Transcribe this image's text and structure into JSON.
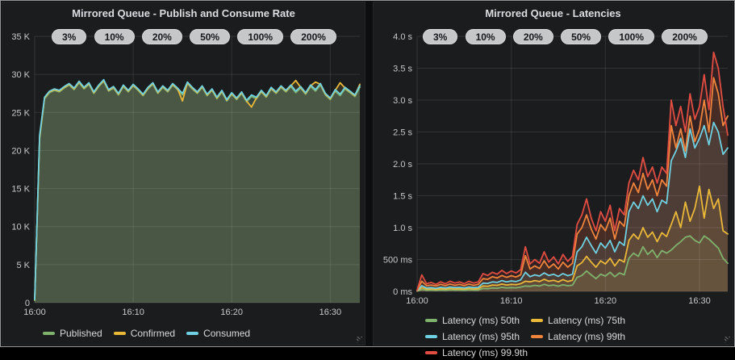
{
  "chart_data": [
    {
      "type": "area",
      "title": "Mirrored Queue - Publish and Consume Rate",
      "annotations": [
        "3%",
        "10%",
        "20%",
        "50%",
        "100%",
        "200%"
      ],
      "x_range": [
        "16:00",
        "16:33"
      ],
      "xmax_minutes": 33,
      "x_step_seconds": 30,
      "xticks": [
        "16:00",
        "16:10",
        "16:20",
        "16:30"
      ],
      "xtick_minutes": [
        0,
        10,
        20,
        30
      ],
      "ylim": [
        0,
        35000
      ],
      "yticks": [
        "0",
        "5 K",
        "10 K",
        "15 K",
        "20 K",
        "25 K",
        "30 K",
        "35 K"
      ],
      "grid": true,
      "legend_position": "bottom",
      "series": [
        {
          "name": "Published",
          "color": "#7EB26D",
          "values": [
            300,
            21500,
            26800,
            27600,
            27900,
            27700,
            28200,
            28600,
            28000,
            28900,
            28100,
            28700,
            27500,
            28400,
            29100,
            27800,
            28200,
            27300,
            28400,
            27700,
            28500,
            27900,
            27200,
            28100,
            28700,
            27500,
            28300,
            27700,
            28600,
            28000,
            27300,
            28800,
            28100,
            27500,
            28300,
            27200,
            27900,
            26800,
            27700,
            26500,
            27400,
            26700,
            27500,
            26400,
            27100,
            26800,
            27700,
            27000,
            28100,
            27500,
            28300,
            27700,
            28400,
            27600,
            28200,
            27400,
            28400,
            27800,
            28600,
            27300,
            26700,
            27800,
            27200,
            28100,
            27600,
            27100,
            28300
          ]
        },
        {
          "name": "Confirmed",
          "color": "#EAB839",
          "values": [
            350,
            21700,
            26900,
            27700,
            28000,
            27800,
            28300,
            28700,
            28100,
            29000,
            28200,
            28800,
            27600,
            28500,
            29200,
            27900,
            28300,
            27400,
            28500,
            27800,
            28600,
            28000,
            27300,
            28200,
            28800,
            27600,
            28400,
            27800,
            28700,
            28100,
            26500,
            28900,
            28200,
            27600,
            28400,
            27300,
            28000,
            26900,
            27800,
            26600,
            27500,
            26800,
            27600,
            26500,
            25700,
            26900,
            27800,
            27100,
            28200,
            27600,
            28400,
            27800,
            28500,
            29200,
            28300,
            27500,
            28500,
            29000,
            28700,
            27400,
            26800,
            27900,
            28900,
            28200,
            27700,
            27200,
            28700
          ]
        },
        {
          "name": "Consumed",
          "color": "#6ED0E0",
          "values": [
            400,
            22000,
            27000,
            27800,
            28100,
            27900,
            28400,
            28800,
            28200,
            29100,
            28300,
            28900,
            27700,
            28600,
            29300,
            28000,
            28400,
            27500,
            28600,
            27900,
            28700,
            28100,
            27400,
            28300,
            28900,
            27700,
            28500,
            27900,
            28800,
            28200,
            27500,
            29000,
            28300,
            27700,
            28500,
            27400,
            28100,
            27000,
            27900,
            26700,
            27600,
            26900,
            27700,
            26600,
            27300,
            27000,
            27900,
            27200,
            28300,
            27700,
            28500,
            27900,
            28600,
            27800,
            28400,
            27600,
            28600,
            28000,
            28800,
            27500,
            26900,
            28000,
            27400,
            28300,
            27800,
            27300,
            28500
          ]
        }
      ]
    },
    {
      "type": "area",
      "title": "Mirrored Queue - Latencies",
      "annotations": [
        "3%",
        "10%",
        "20%",
        "50%",
        "100%",
        "200%"
      ],
      "x_range": [
        "16:00",
        "16:33"
      ],
      "xmax_minutes": 33,
      "x_step_seconds": 30,
      "xticks": [
        "16:00",
        "16:10",
        "16:20",
        "16:30"
      ],
      "xtick_minutes": [
        0,
        10,
        20,
        30
      ],
      "ylim": [
        0,
        4000
      ],
      "yticks": [
        "0 ms",
        "500 ms",
        "1.0 s",
        "1.5 s",
        "2.0 s",
        "2.5 s",
        "3.0 s",
        "3.5 s",
        "4.0 s"
      ],
      "grid": true,
      "legend_position": "bottom",
      "series": [
        {
          "name": "Latency (ms) 50th",
          "color": "#7EB26D",
          "values": [
            5,
            30,
            18,
            20,
            16,
            22,
            18,
            24,
            20,
            22,
            18,
            24,
            20,
            22,
            45,
            42,
            55,
            50,
            65,
            55,
            60,
            56,
            68,
            85,
            80,
            95,
            85,
            110,
            90,
            100,
            82,
            105,
            88,
            98,
            220,
            250,
            320,
            260,
            200,
            270,
            240,
            300,
            230,
            290,
            260,
            520,
            600,
            550,
            700,
            580,
            650,
            530,
            640,
            600,
            650,
            720,
            780,
            850,
            870,
            800,
            760,
            870,
            820,
            750,
            680,
            520,
            440
          ]
        },
        {
          "name": "Latency (ms) 75th",
          "color": "#EAB839",
          "values": [
            8,
            60,
            35,
            40,
            32,
            42,
            35,
            45,
            38,
            42,
            35,
            45,
            38,
            42,
            85,
            80,
            100,
            95,
            115,
            100,
            110,
            105,
            120,
            160,
            150,
            170,
            155,
            190,
            160,
            175,
            150,
            185,
            155,
            175,
            400,
            450,
            550,
            460,
            380,
            480,
            430,
            520,
            400,
            500,
            460,
            800,
            900,
            820,
            1000,
            850,
            930,
            780,
            920,
            860,
            1050,
            1250,
            1000,
            1400,
            1100,
            1300,
            1650,
            1150,
            1600,
            1300,
            1450,
            950,
            900
          ]
        },
        {
          "name": "Latency (ms) 95th",
          "color": "#6ED0E0",
          "values": [
            10,
            90,
            55,
            60,
            50,
            65,
            55,
            70,
            60,
            65,
            55,
            70,
            60,
            65,
            130,
            125,
            150,
            140,
            170,
            150,
            165,
            155,
            180,
            300,
            230,
            260,
            240,
            290,
            250,
            270,
            235,
            280,
            245,
            270,
            620,
            700,
            850,
            720,
            600,
            760,
            680,
            800,
            620,
            780,
            720,
            1250,
            1400,
            1300,
            1500,
            1350,
            1450,
            1250,
            1430,
            1380,
            2050,
            2200,
            2400,
            2100,
            2550,
            2250,
            2400,
            2600,
            2300,
            2650,
            2500,
            2150,
            2250
          ]
        },
        {
          "name": "Latency (ms) 99th",
          "color": "#EF843C",
          "values": [
            15,
            160,
            90,
            100,
            85,
            110,
            90,
            115,
            95,
            110,
            90,
            115,
            95,
            110,
            200,
            190,
            230,
            210,
            250,
            220,
            245,
            225,
            260,
            560,
            350,
            400,
            360,
            480,
            370,
            430,
            350,
            460,
            380,
            440,
            900,
            1000,
            1200,
            980,
            820,
            1050,
            950,
            1150,
            820,
            1100,
            1020,
            1500,
            1700,
            1550,
            1850,
            1600,
            1750,
            1500,
            1750,
            1650,
            2600,
            2250,
            2550,
            2200,
            2750,
            2350,
            2550,
            3000,
            2500,
            3350,
            3100,
            2600,
            2750
          ]
        },
        {
          "name": "Latency (ms) 99.9th",
          "color": "#E24D42",
          "values": [
            20,
            260,
            120,
            140,
            110,
            150,
            120,
            160,
            130,
            150,
            120,
            160,
            130,
            150,
            280,
            250,
            300,
            270,
            330,
            280,
            320,
            290,
            340,
            700,
            430,
            500,
            440,
            620,
            460,
            540,
            430,
            580,
            470,
            550,
            1050,
            1200,
            1450,
            1150,
            950,
            1250,
            1100,
            1350,
            950,
            1300,
            1200,
            1700,
            1900,
            1750,
            2100,
            1800,
            1950,
            1700,
            1950,
            1850,
            3000,
            2600,
            2900,
            2500,
            3100,
            2700,
            2900,
            3400,
            2850,
            3750,
            3500,
            2900,
            2450
          ]
        }
      ]
    }
  ]
}
